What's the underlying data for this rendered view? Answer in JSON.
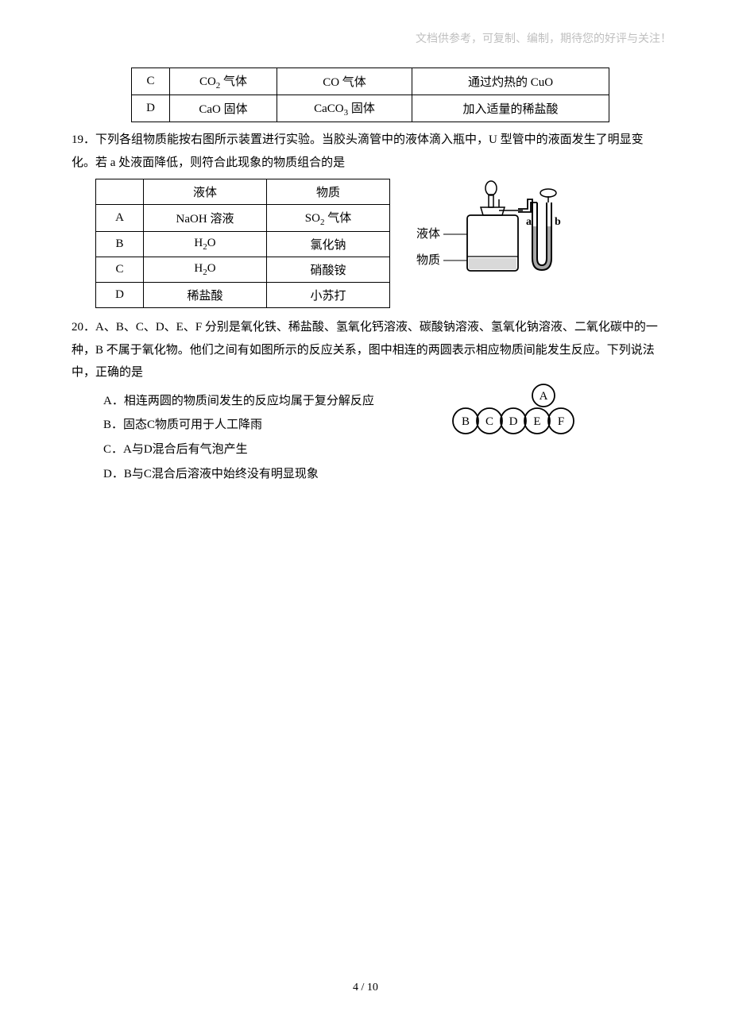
{
  "header_note": "文档供参考，可复制、编制，期待您的好评与关注！",
  "table1": {
    "rows": [
      [
        "C",
        "CO<sub>2</sub> 气体",
        "CO 气体",
        "通过灼热的 CuO"
      ],
      [
        "D",
        "CaO 固体",
        "CaCO<sub>3</sub> 固体",
        "加入适量的稀盐酸"
      ]
    ]
  },
  "q19": {
    "text": "19．下列各组物质能按右图所示装置进行实验。当胶头滴管中的液体滴入瓶中，U 型管中的液面发生了明显变化。若 a 处液面降低，则符合此现象的物质组合的是",
    "table": {
      "header": [
        "",
        "液体",
        "物质"
      ],
      "rows": [
        [
          "A",
          "NaOH 溶液",
          "SO<sub>2</sub> 气体"
        ],
        [
          "B",
          "H<sub>2</sub>O",
          "氯化钠"
        ],
        [
          "C",
          "H<sub>2</sub>O",
          "硝酸铵"
        ],
        [
          "D",
          "稀盐酸",
          "小苏打"
        ]
      ]
    },
    "apparatus_labels": {
      "liquid": "液体",
      "substance": "物质",
      "a": "a",
      "b": "b"
    }
  },
  "q20": {
    "text": "20．A、B、C、D、E、F 分别是氧化铁、稀盐酸、氢氧化钙溶液、碳酸钠溶液、氢氧化钠溶液、二氧化碳中的一种，B 不属于氧化物。他们之间有如图所示的反应关系，图中相连的两圆表示相应物质间能发生反应。下列说法中，正确的是",
    "choices": [
      "A．相连两圆的物质间发生的反应均属于复分解反应",
      "B．固态C物质可用于人工降雨",
      "C．A与D混合后有气泡产生",
      "D．B与C混合后溶液中始终没有明显现象"
    ],
    "nodes": [
      "A",
      "B",
      "C",
      "D",
      "E",
      "F"
    ]
  },
  "page_num": "4 / 10"
}
